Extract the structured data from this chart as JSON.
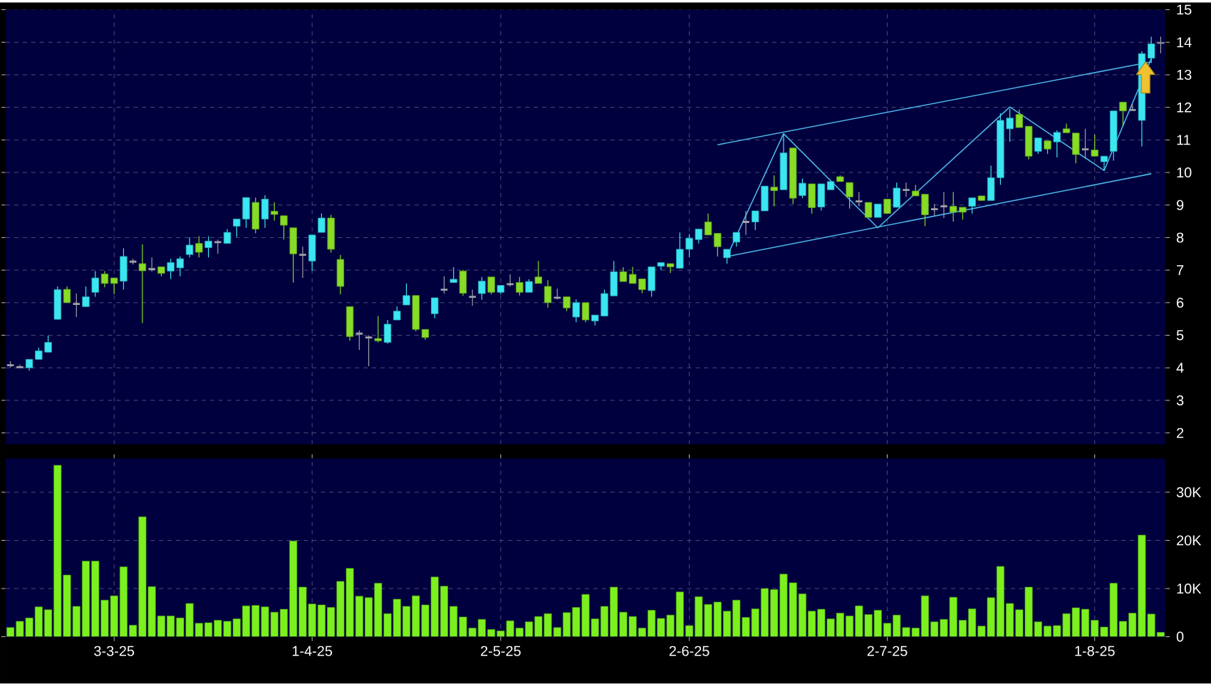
{
  "chart_data": [
    {
      "type": "candlestick",
      "categories": [
        null,
        null,
        null,
        null,
        null,
        null,
        null,
        null,
        null,
        null,
        null,
        null,
        null,
        null,
        null,
        null,
        null,
        null,
        null,
        null,
        null,
        null,
        null,
        null,
        null,
        null,
        null,
        null,
        null,
        null,
        null,
        null,
        null,
        null,
        null,
        null,
        null,
        null,
        null,
        null,
        null,
        null,
        null,
        null,
        null,
        null,
        null,
        null,
        null,
        null,
        null,
        null,
        null,
        null,
        null,
        null,
        null,
        null,
        null,
        null,
        null,
        null,
        null,
        null,
        null,
        null,
        null,
        null,
        null,
        null,
        null,
        null,
        null,
        null,
        null,
        null,
        null,
        null,
        null,
        null,
        null,
        null,
        null,
        null,
        null,
        null,
        null,
        null,
        null,
        null,
        null,
        null,
        null,
        null,
        null,
        null,
        null,
        null,
        null,
        null,
        null,
        null,
        null,
        null,
        null,
        null,
        null,
        null,
        null,
        null,
        null,
        null,
        null,
        null,
        null,
        null,
        null,
        null,
        null,
        null,
        null,
        null,
        null
      ],
      "ohlc": [
        [
          4.08,
          4.2,
          4.01,
          4.08
        ],
        [
          4.02,
          4.1,
          4.0,
          4.02
        ],
        [
          4.0,
          4.26,
          3.91,
          4.26
        ],
        [
          4.26,
          4.62,
          4.26,
          4.52
        ],
        [
          4.48,
          4.99,
          4.48,
          4.78
        ],
        [
          5.49,
          6.5,
          5.49,
          6.4
        ],
        [
          6.41,
          6.5,
          6.0,
          6.0
        ],
        [
          5.96,
          6.28,
          5.56,
          5.96
        ],
        [
          5.88,
          6.5,
          5.88,
          6.18
        ],
        [
          6.32,
          6.97,
          6.18,
          6.76
        ],
        [
          6.88,
          6.97,
          6.47,
          6.59
        ],
        [
          6.76,
          6.76,
          6.26,
          6.59
        ],
        [
          6.66,
          7.67,
          6.4,
          7.42
        ],
        [
          7.26,
          7.35,
          7.17,
          7.26
        ],
        [
          7.2,
          7.79,
          5.37,
          6.98
        ],
        [
          7.03,
          7.39,
          6.96,
          7.03
        ],
        [
          7.1,
          7.1,
          6.81,
          6.9
        ],
        [
          6.97,
          7.35,
          6.73,
          7.23
        ],
        [
          7.07,
          7.42,
          6.81,
          7.35
        ],
        [
          7.48,
          8.01,
          7.39,
          7.77
        ],
        [
          7.82,
          8.04,
          7.39,
          7.55
        ],
        [
          7.69,
          8.04,
          7.39,
          7.89
        ],
        [
          7.86,
          7.94,
          7.5,
          7.86
        ],
        [
          7.82,
          8.26,
          7.82,
          8.16
        ],
        [
          8.35,
          8.57,
          8.02,
          8.57
        ],
        [
          8.57,
          9.23,
          8.3,
          9.23
        ],
        [
          9.08,
          9.23,
          8.13,
          8.26
        ],
        [
          8.57,
          9.3,
          8.3,
          9.18
        ],
        [
          8.81,
          9.08,
          8.52,
          8.71
        ],
        [
          8.67,
          8.67,
          7.94,
          8.38
        ],
        [
          8.3,
          8.3,
          6.62,
          7.5
        ],
        [
          7.47,
          7.72,
          6.76,
          7.47
        ],
        [
          7.28,
          8.08,
          6.98,
          8.08
        ],
        [
          8.16,
          8.74,
          8.16,
          8.6
        ],
        [
          8.6,
          8.7,
          7.54,
          7.64
        ],
        [
          7.33,
          7.47,
          6.26,
          6.5
        ],
        [
          5.88,
          5.88,
          4.83,
          4.96
        ],
        [
          5.05,
          5.15,
          4.55,
          5.05
        ],
        [
          4.93,
          5.0,
          4.05,
          4.93
        ],
        [
          4.9,
          5.59,
          4.78,
          4.83
        ],
        [
          4.78,
          5.47,
          4.74,
          5.34
        ],
        [
          5.47,
          5.88,
          5.47,
          5.74
        ],
        [
          5.93,
          6.59,
          5.93,
          6.22
        ],
        [
          6.22,
          6.22,
          5.12,
          5.18
        ],
        [
          5.18,
          5.18,
          4.86,
          4.93
        ],
        [
          5.66,
          6.15,
          5.52,
          6.15
        ],
        [
          6.4,
          6.81,
          6.28,
          6.4
        ],
        [
          6.62,
          7.09,
          6.62,
          6.72
        ],
        [
          6.97,
          7.01,
          6.21,
          6.29
        ],
        [
          6.18,
          6.4,
          5.91,
          6.18
        ],
        [
          6.28,
          6.79,
          6.09,
          6.66
        ],
        [
          6.79,
          6.79,
          6.26,
          6.32
        ],
        [
          6.32,
          6.53,
          6.26,
          6.53
        ],
        [
          6.57,
          6.87,
          6.5,
          6.57
        ],
        [
          6.62,
          6.79,
          6.22,
          6.32
        ],
        [
          6.32,
          6.72,
          6.32,
          6.65
        ],
        [
          6.79,
          7.28,
          6.59,
          6.59
        ],
        [
          6.5,
          6.69,
          5.85,
          6.0
        ],
        [
          6.15,
          6.43,
          6.1,
          6.15
        ],
        [
          6.18,
          6.18,
          5.74,
          5.84
        ],
        [
          5.56,
          6.1,
          5.4,
          6.0
        ],
        [
          6.0,
          6.0,
          5.4,
          5.47
        ],
        [
          5.44,
          5.62,
          5.3,
          5.62
        ],
        [
          5.59,
          6.4,
          5.59,
          6.28
        ],
        [
          6.21,
          7.28,
          6.21,
          6.95
        ],
        [
          6.95,
          7.09,
          6.65,
          6.65
        ],
        [
          6.87,
          7.1,
          6.59,
          6.59
        ],
        [
          6.73,
          6.73,
          6.29,
          6.4
        ],
        [
          6.37,
          7.1,
          6.18,
          7.1
        ],
        [
          7.12,
          7.23,
          7.0,
          7.23
        ],
        [
          7.2,
          7.2,
          6.91,
          7.1
        ],
        [
          7.06,
          8.16,
          7.06,
          7.64
        ],
        [
          7.64,
          8.11,
          7.39,
          7.98
        ],
        [
          7.94,
          8.26,
          7.82,
          8.26
        ],
        [
          8.48,
          8.74,
          8.08,
          8.08
        ],
        [
          8.13,
          8.13,
          7.42,
          7.72
        ],
        [
          7.38,
          7.64,
          7.2,
          7.64
        ],
        [
          7.86,
          8.16,
          7.72,
          8.16
        ],
        [
          8.48,
          8.82,
          8.08,
          8.48
        ],
        [
          8.48,
          8.82,
          8.23,
          8.82
        ],
        [
          8.82,
          9.58,
          8.82,
          9.58
        ],
        [
          9.55,
          9.91,
          8.96,
          9.44
        ],
        [
          9.47,
          11.19,
          9.47,
          10.6
        ],
        [
          10.75,
          10.75,
          9.03,
          9.21
        ],
        [
          9.29,
          9.81,
          9.21,
          9.67
        ],
        [
          9.65,
          9.65,
          8.74,
          8.92
        ],
        [
          8.94,
          9.65,
          8.83,
          9.65
        ],
        [
          9.47,
          9.72,
          9.47,
          9.72
        ],
        [
          9.87,
          9.91,
          9.72,
          9.72
        ],
        [
          9.69,
          9.69,
          8.89,
          9.25
        ],
        [
          9.11,
          9.4,
          8.96,
          9.11
        ],
        [
          9.08,
          9.08,
          8.62,
          8.62
        ],
        [
          8.62,
          9.03,
          8.62,
          9.03
        ],
        [
          9.18,
          9.18,
          8.74,
          8.74
        ],
        [
          8.93,
          9.69,
          8.93,
          9.52
        ],
        [
          9.46,
          9.69,
          9.25,
          9.46
        ],
        [
          9.43,
          9.62,
          9.28,
          9.28
        ],
        [
          9.33,
          9.33,
          8.35,
          8.7
        ],
        [
          8.87,
          9.03,
          8.66,
          8.87
        ],
        [
          8.96,
          9.4,
          8.6,
          8.96
        ],
        [
          8.96,
          9.4,
          8.49,
          8.78
        ],
        [
          8.93,
          8.93,
          8.55,
          8.78
        ],
        [
          8.96,
          9.22,
          8.74,
          9.22
        ],
        [
          9.28,
          9.28,
          9.14,
          9.14
        ],
        [
          9.14,
          10.21,
          9.14,
          9.84
        ],
        [
          9.84,
          11.82,
          9.62,
          11.6
        ],
        [
          11.34,
          11.96,
          10.94,
          11.67
        ],
        [
          11.78,
          11.93,
          11.38,
          11.38
        ],
        [
          11.42,
          11.42,
          10.4,
          10.5
        ],
        [
          10.65,
          11.06,
          10.57,
          11.06
        ],
        [
          10.97,
          10.97,
          10.57,
          10.72
        ],
        [
          10.94,
          11.3,
          10.46,
          11.23
        ],
        [
          11.34,
          11.5,
          11.22,
          11.22
        ],
        [
          11.21,
          11.21,
          10.28,
          10.55
        ],
        [
          10.71,
          11.34,
          10.42,
          10.71
        ],
        [
          10.69,
          11.16,
          10.5,
          10.5
        ],
        [
          10.33,
          10.5,
          10.06,
          10.5
        ],
        [
          10.65,
          11.89,
          10.36,
          11.89
        ],
        [
          12.16,
          12.16,
          11.42,
          11.89
        ],
        [
          11.92,
          12.1,
          11.92,
          11.92
        ],
        [
          11.6,
          13.72,
          10.8,
          13.65
        ],
        [
          13.51,
          14.17,
          13.36,
          13.95
        ],
        [
          13.96,
          14.17,
          13.66,
          14.0
        ]
      ],
      "colors": [
        "#a0a0a8",
        "#a0a0a8",
        "#3ae6f2",
        "#3ae6f2",
        "#3ae6f2",
        "#3ae6f2",
        "#86dc26",
        "#a0a0a8",
        "#3ae6f2",
        "#3ae6f2",
        "#86dc26",
        "#86dc26",
        "#3ae6f2",
        "#a0a0a8",
        "#86dc26",
        "#a0a0a8",
        "#86dc26",
        "#3ae6f2",
        "#3ae6f2",
        "#3ae6f2",
        "#86dc26",
        "#3ae6f2",
        "#a0a0a8",
        "#3ae6f2",
        "#3ae6f2",
        "#3ae6f2",
        "#86dc26",
        "#3ae6f2",
        "#86dc26",
        "#86dc26",
        "#86dc26",
        "#a0a0a8",
        "#3ae6f2",
        "#3ae6f2",
        "#86dc26",
        "#86dc26",
        "#86dc26",
        "#a0a0a8",
        "#a0a0a8",
        "#86dc26",
        "#3ae6f2",
        "#3ae6f2",
        "#3ae6f2",
        "#86dc26",
        "#86dc26",
        "#3ae6f2",
        "#a0a0a8",
        "#3ae6f2",
        "#86dc26",
        "#a0a0a8",
        "#3ae6f2",
        "#86dc26",
        "#3ae6f2",
        "#a0a0a8",
        "#86dc26",
        "#3ae6f2",
        "#86dc26",
        "#86dc26",
        "#a0a0a8",
        "#86dc26",
        "#3ae6f2",
        "#86dc26",
        "#3ae6f2",
        "#3ae6f2",
        "#3ae6f2",
        "#86dc26",
        "#86dc26",
        "#86dc26",
        "#3ae6f2",
        "#3ae6f2",
        "#86dc26",
        "#3ae6f2",
        "#3ae6f2",
        "#3ae6f2",
        "#86dc26",
        "#86dc26",
        "#3ae6f2",
        "#3ae6f2",
        "#a0a0a8",
        "#3ae6f2",
        "#3ae6f2",
        "#86dc26",
        "#3ae6f2",
        "#86dc26",
        "#3ae6f2",
        "#86dc26",
        "#3ae6f2",
        "#3ae6f2",
        "#86dc26",
        "#86dc26",
        "#a0a0a8",
        "#86dc26",
        "#3ae6f2",
        "#86dc26",
        "#3ae6f2",
        "#a0a0a8",
        "#86dc26",
        "#86dc26",
        "#a0a0a8",
        "#a0a0a8",
        "#86dc26",
        "#86dc26",
        "#3ae6f2",
        "#86dc26",
        "#3ae6f2",
        "#3ae6f2",
        "#3ae6f2",
        "#86dc26",
        "#86dc26",
        "#3ae6f2",
        "#86dc26",
        "#3ae6f2",
        "#86dc26",
        "#86dc26",
        "#a0a0a8",
        "#86dc26",
        "#3ae6f2",
        "#3ae6f2",
        "#86dc26",
        "#a0a0a8",
        "#3ae6f2",
        "#3ae6f2",
        "#a0a0a8"
      ],
      "series": [
        {
          "type": "line",
          "color": "#4cb4e8",
          "values": [
            null,
            null,
            null,
            null,
            null,
            null,
            null,
            null,
            null,
            null,
            null,
            null,
            null,
            null,
            null,
            null,
            null,
            null,
            null,
            null,
            null,
            null,
            null,
            null,
            null,
            null,
            null,
            null,
            null,
            null,
            null,
            null,
            null,
            null,
            null,
            null,
            null,
            null,
            null,
            null,
            null,
            null,
            null,
            null,
            null,
            null,
            null,
            null,
            null,
            null,
            null,
            null,
            null,
            null,
            null,
            null,
            null,
            null,
            null,
            null,
            null,
            null,
            null,
            null,
            null,
            null,
            null,
            null,
            null,
            null,
            null,
            null,
            null,
            null,
            null,
            10.85,
            null,
            null,
            null,
            null,
            null,
            null,
            null,
            null,
            null,
            null,
            null,
            null,
            null,
            null,
            null,
            null,
            null,
            null,
            null,
            null,
            null,
            null,
            null,
            null,
            null,
            null,
            null,
            null,
            null,
            null,
            null,
            null,
            null,
            null,
            null,
            null,
            null,
            null,
            null,
            null,
            null,
            null,
            null,
            null,
            null,
            13.4,
            null
          ]
        },
        {
          "type": "line",
          "color": "#4cb4e8",
          "values": [
            null,
            null,
            null,
            null,
            null,
            null,
            null,
            null,
            null,
            null,
            null,
            null,
            null,
            null,
            null,
            null,
            null,
            null,
            null,
            null,
            null,
            null,
            null,
            null,
            null,
            null,
            null,
            null,
            null,
            null,
            null,
            null,
            null,
            null,
            null,
            null,
            null,
            null,
            null,
            null,
            null,
            null,
            null,
            null,
            null,
            null,
            null,
            null,
            null,
            null,
            null,
            null,
            null,
            null,
            null,
            null,
            null,
            null,
            null,
            null,
            null,
            null,
            null,
            null,
            null,
            null,
            null,
            null,
            null,
            null,
            null,
            null,
            null,
            null,
            null,
            null,
            7.42,
            null,
            null,
            null,
            null,
            null,
            null,
            null,
            null,
            null,
            null,
            null,
            null,
            null,
            null,
            null,
            null,
            null,
            null,
            null,
            null,
            null,
            null,
            null,
            null,
            null,
            null,
            null,
            null,
            null,
            null,
            null,
            null,
            null,
            null,
            null,
            null,
            null,
            null,
            null,
            null,
            null,
            null,
            null,
            null,
            9.96,
            null
          ]
        },
        {
          "type": "line",
          "color": "#4cb4e8",
          "values": [
            null,
            null,
            null,
            null,
            null,
            null,
            null,
            null,
            null,
            null,
            null,
            null,
            null,
            null,
            null,
            null,
            null,
            null,
            null,
            null,
            null,
            null,
            null,
            null,
            null,
            null,
            null,
            null,
            null,
            null,
            null,
            null,
            null,
            null,
            null,
            null,
            null,
            null,
            null,
            null,
            null,
            null,
            null,
            null,
            null,
            null,
            null,
            null,
            null,
            null,
            null,
            null,
            null,
            null,
            null,
            null,
            null,
            null,
            null,
            null,
            null,
            null,
            null,
            null,
            null,
            null,
            null,
            null,
            null,
            null,
            null,
            null,
            null,
            null,
            null,
            null,
            7.42,
            null,
            null,
            null,
            null,
            null,
            11.19,
            null,
            null,
            null,
            null,
            null,
            null,
            null,
            null,
            null,
            8.3,
            null,
            null,
            null,
            null,
            null,
            null,
            null,
            null,
            null,
            null,
            null,
            null,
            null,
            12.01,
            null,
            null,
            null,
            null,
            null,
            null,
            null,
            null,
            null,
            10.06,
            null,
            null,
            null,
            null,
            13.5,
            null
          ]
        }
      ],
      "ylim": [
        1.65,
        15
      ],
      "yticks": [
        2,
        3,
        4,
        5,
        6,
        7,
        8,
        9,
        10,
        11,
        12,
        13,
        14,
        15
      ],
      "grid": true,
      "tick_labels": "y"
    },
    {
      "type": "bar",
      "categories": [
        null,
        null,
        null,
        null,
        null,
        null,
        null,
        null,
        null,
        null,
        null,
        "3-3-25",
        null,
        null,
        null,
        null,
        null,
        null,
        null,
        null,
        null,
        null,
        null,
        null,
        null,
        null,
        null,
        null,
        null,
        null,
        null,
        null,
        "1-4-25",
        null,
        null,
        null,
        null,
        null,
        null,
        null,
        null,
        null,
        null,
        null,
        null,
        null,
        null,
        null,
        null,
        null,
        null,
        null,
        "2-5-25",
        null,
        null,
        null,
        null,
        null,
        null,
        null,
        null,
        null,
        null,
        null,
        null,
        null,
        null,
        null,
        null,
        null,
        null,
        null,
        "2-6-25",
        null,
        null,
        null,
        null,
        null,
        null,
        null,
        null,
        null,
        null,
        null,
        null,
        null,
        null,
        null,
        null,
        null,
        null,
        null,
        null,
        "2-7-25",
        null,
        null,
        null,
        null,
        null,
        null,
        null,
        null,
        null,
        null,
        null,
        null,
        null,
        null,
        null,
        null,
        null,
        null,
        null,
        null,
        null,
        "1-8-25",
        null,
        null,
        null,
        null,
        null,
        null,
        null
      ],
      "values": [
        1900,
        3200,
        3900,
        6200,
        5600,
        35600,
        12800,
        6300,
        15700,
        15700,
        7600,
        8500,
        14500,
        2400,
        24900,
        10400,
        4300,
        4300,
        3900,
        6900,
        2800,
        2900,
        3400,
        3200,
        3700,
        6400,
        6500,
        6200,
        5100,
        5700,
        19900,
        10300,
        6800,
        6600,
        6100,
        11500,
        14200,
        8400,
        8100,
        11100,
        4800,
        7800,
        6300,
        8500,
        6600,
        12400,
        10500,
        6300,
        4100,
        1800,
        3600,
        1500,
        1200,
        3300,
        1800,
        3100,
        4200,
        4800,
        1900,
        5000,
        6100,
        8800,
        3700,
        6300,
        10300,
        5100,
        4200,
        1800,
        5500,
        3800,
        4500,
        9300,
        2300,
        8300,
        6700,
        7200,
        5300,
        7600,
        4000,
        5800,
        10000,
        9800,
        13000,
        11200,
        8900,
        5300,
        5700,
        3700,
        4900,
        4300,
        6400,
        4600,
        5500,
        2800,
        4500,
        1900,
        1800,
        8500,
        3100,
        3600,
        8200,
        3400,
        5800,
        2200,
        8100,
        14600,
        6900,
        5600,
        10300,
        3100,
        2200,
        2300,
        4800,
        6000,
        5700,
        3400,
        2000,
        11100,
        3200,
        4900,
        21100,
        4700,
        900
      ],
      "color": "#7cf01e",
      "ylim": [
        0,
        37000
      ],
      "yticks": [
        0,
        {
          "value": 10000,
          "label": "10K"
        },
        {
          "value": 20000,
          "label": "20K"
        },
        {
          "value": 30000,
          "label": "30K"
        }
      ],
      "grid": true
    }
  ]
}
